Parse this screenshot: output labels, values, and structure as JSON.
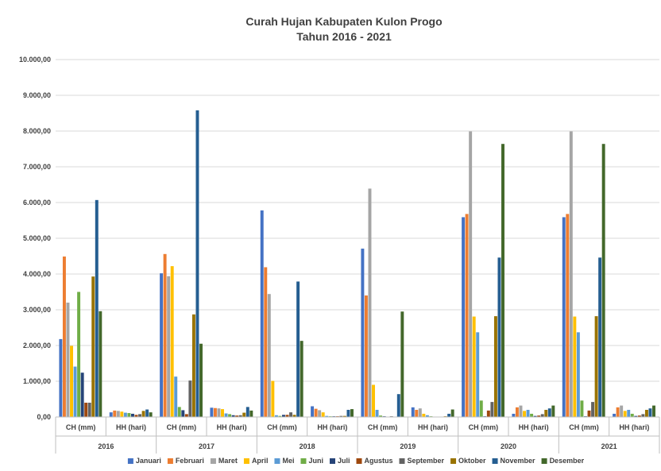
{
  "chart_data": {
    "type": "bar",
    "title": "Curah Hujan Kabupaten Kulon Progo",
    "subtitle": "Tahun 2016 - 2021",
    "xlabel": "",
    "ylabel": "",
    "ylim": [
      0,
      10000
    ],
    "yticks": [
      "0,00",
      "1.000,00",
      "2.000,00",
      "3.000,00",
      "4.000,00",
      "5.000,00",
      "6.000,00",
      "7.000,00",
      "8.000,00",
      "9.000,00",
      "10.000,00"
    ],
    "grid": true,
    "legend_position": "bottom",
    "years": [
      "2016",
      "2017",
      "2018",
      "2019",
      "2020",
      "2021"
    ],
    "subcategories": [
      "CH (mm)",
      "HH (hari)"
    ],
    "series": [
      {
        "name": "Januari",
        "color": "#4472C4",
        "values": [
          2180,
          130,
          4020,
          260,
          5780,
          300,
          4710,
          270,
          5590,
          90,
          5590,
          90
        ]
      },
      {
        "name": "Februari",
        "color": "#ED7D31",
        "values": [
          4490,
          180,
          4560,
          250,
          4190,
          230,
          3400,
          200,
          5680,
          270,
          5680,
          270
        ]
      },
      {
        "name": "Maret",
        "color": "#A5A5A5",
        "values": [
          3200,
          170,
          3940,
          240,
          3440,
          190,
          6390,
          240,
          7990,
          320,
          7990,
          320
        ]
      },
      {
        "name": "April",
        "color": "#FFC000",
        "values": [
          1990,
          150,
          4220,
          220,
          1010,
          130,
          900,
          90,
          2810,
          170,
          2810,
          170
        ]
      },
      {
        "name": "Mei",
        "color": "#5B9BD5",
        "values": [
          1410,
          120,
          1130,
          100,
          50,
          30,
          200,
          50,
          2370,
          200,
          2370,
          200
        ]
      },
      {
        "name": "Juni",
        "color": "#70AD47",
        "values": [
          3500,
          110,
          280,
          80,
          30,
          20,
          40,
          20,
          460,
          90,
          460,
          90
        ]
      },
      {
        "name": "Juli",
        "color": "#264478",
        "values": [
          1240,
          90,
          190,
          50,
          60,
          20,
          20,
          10,
          20,
          30,
          20,
          30
        ]
      },
      {
        "name": "Agustus",
        "color": "#9E480E",
        "values": [
          400,
          60,
          80,
          40,
          60,
          20,
          10,
          10,
          180,
          40,
          180,
          40
        ]
      },
      {
        "name": "September",
        "color": "#636363",
        "values": [
          400,
          80,
          1020,
          50,
          130,
          30,
          20,
          10,
          420,
          80,
          420,
          80
        ]
      },
      {
        "name": "Oktober",
        "color": "#997300",
        "values": [
          3930,
          170,
          2870,
          120,
          60,
          30,
          10,
          20,
          2820,
          200,
          2820,
          200
        ]
      },
      {
        "name": "November",
        "color": "#255E91",
        "values": [
          6070,
          210,
          8580,
          280,
          3790,
          200,
          640,
          90,
          4460,
          240,
          4460,
          240
        ]
      },
      {
        "name": "Desember",
        "color": "#43682B",
        "values": [
          2960,
          130,
          2050,
          180,
          2130,
          220,
          2950,
          210,
          7640,
          320,
          7640,
          320
        ]
      }
    ]
  }
}
